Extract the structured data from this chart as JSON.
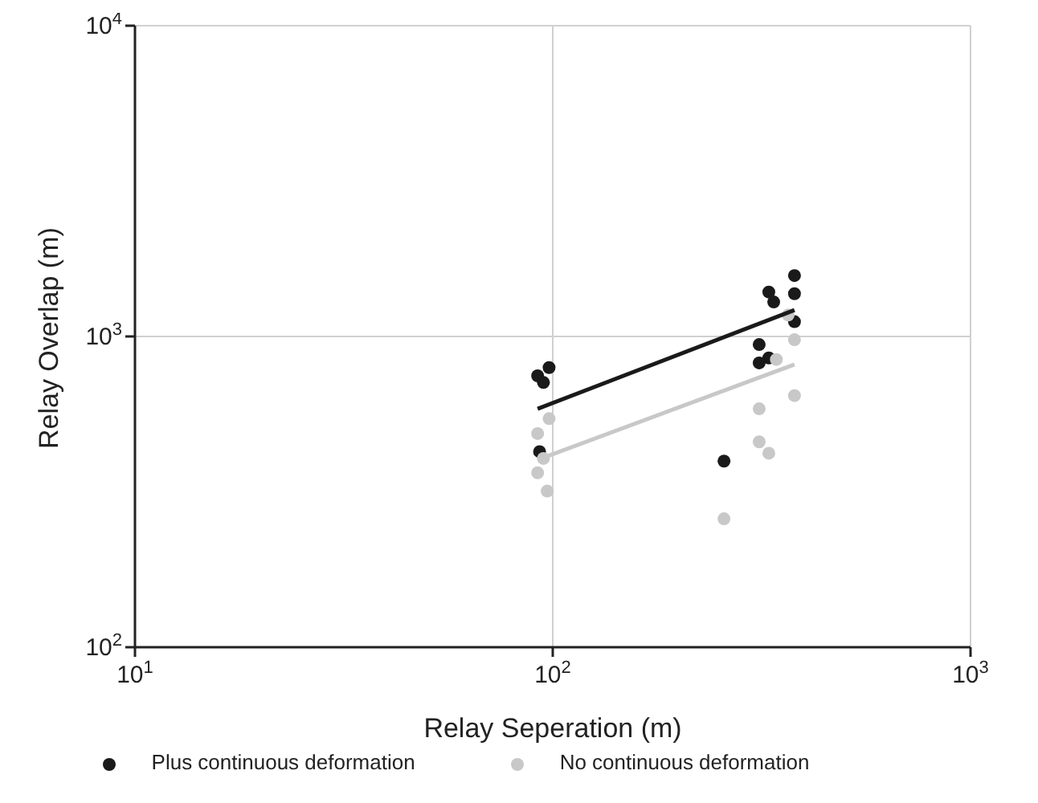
{
  "chart_data": {
    "type": "scatter",
    "xlabel": "Relay Seperation (m)",
    "ylabel": "Relay Overlap (m)",
    "log": "xy",
    "grid": true,
    "legend": "bottom",
    "xlim": [
      10,
      1000
    ],
    "xticks": [
      {
        "value": 10,
        "label": "10$^{1}$"
      },
      {
        "value": 100,
        "label": "10$^{2}$"
      },
      {
        "value": 1000,
        "label": "10$^{3}$"
      }
    ],
    "ylim": [
      100,
      10000
    ],
    "yticks": [
      {
        "value": 100,
        "label": "10$^{2}$"
      },
      {
        "value": 1000,
        "label": "10$^{3}$"
      },
      {
        "value": 10000,
        "label": "10$^{4}$"
      }
    ],
    "series": [
      {
        "name": "Plus continuous deformation",
        "color": "#1a1a1a",
        "marker": "circle",
        "x": [
          92,
          95,
          98,
          93,
          329,
          338,
          312,
          329,
          312,
          379,
          379,
          379,
          257
        ],
        "values": [
          747,
          711,
          794,
          426,
          1390,
          1291,
          942,
          853,
          822,
          1570,
          1373,
          1116,
          397
        ]
      },
      {
        "name": "No continuous deformation",
        "color": "#c8c8c8",
        "marker": "circle",
        "x": [
          98,
          92,
          92,
          97,
          95,
          366,
          379,
          343,
          312,
          312,
          329,
          379,
          257
        ],
        "values": [
          544,
          487,
          364,
          318,
          405,
          1172,
          976,
          843,
          585,
          458,
          421,
          645,
          259
        ]
      },
      {
        "type": "line",
        "color": "#1a1a1a",
        "marker": "none",
        "x": [
          92,
          379
        ],
        "values": [
          585,
          1216
        ]
      },
      {
        "type": "line",
        "color": "#c8c8c8",
        "marker": "none",
        "x": [
          92,
          379
        ],
        "values": [
          401,
          813
        ]
      }
    ]
  }
}
